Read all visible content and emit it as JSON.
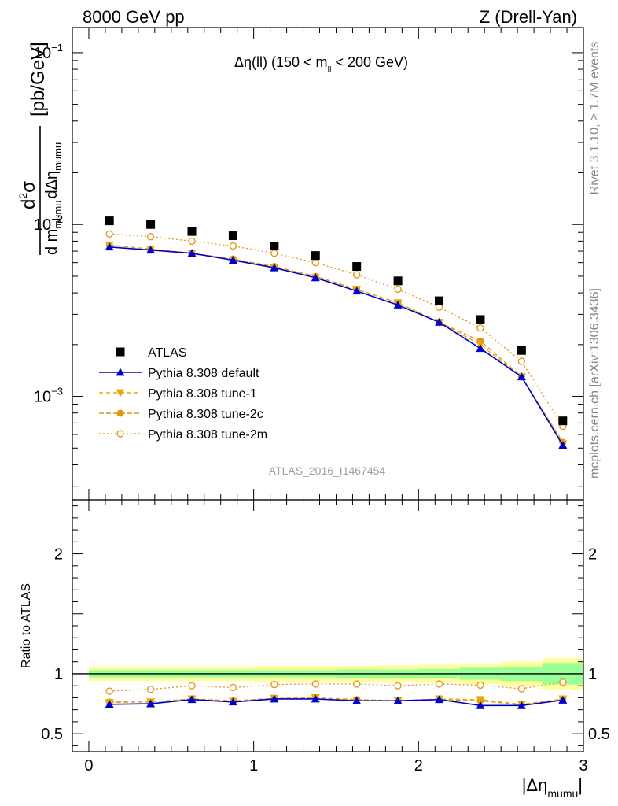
{
  "header": {
    "left": "8000 GeV pp",
    "right": "Z (Drell-Yan)"
  },
  "side_labels": {
    "rivet": "Rivet 3.1.10, ≥ 1.7M events",
    "mcplots": "mcplots.cern.ch [arXiv:1306.3436]"
  },
  "chart_data": {
    "type": "scatter",
    "title": "Δη(ll) (150 < m",
    "title_sub": "ll",
    "title_end": " < 200 GeV)",
    "watermark": "ATLAS_2016_I1467454",
    "ylabel_unit": "[pb/GeV]",
    "ylabel_parts": {
      "d2": "d",
      "sup2": "2",
      "sigma": "σ",
      "dm": "d m",
      "mumu1": "mumu",
      "deta": "dΔη",
      "mumu2": "mumu"
    },
    "xlabel": "|Δη",
    "xlabel_sub": "mumu",
    "xlabel_end": "|",
    "ratio_ylabel": "Ratio to ATLAS",
    "xlim": [
      -0.1,
      3.0
    ],
    "ylim": [
      0.00025,
      0.14
    ],
    "ratio_ylim": [
      0.35,
      2.45
    ],
    "yscale": "log",
    "x_ticks": [
      {
        "v": 0,
        "label": "0"
      },
      {
        "v": 1,
        "label": "1"
      },
      {
        "v": 2,
        "label": "2"
      },
      {
        "v": 3,
        "label": "3"
      }
    ],
    "y_ticks": [
      {
        "v": 0.1,
        "base": "10",
        "exp": "−1"
      },
      {
        "v": 0.01,
        "base": "10",
        "exp": "−2"
      },
      {
        "v": 0.001,
        "base": "10",
        "exp": "−3"
      }
    ],
    "ratio_ticks": [
      {
        "v": 0.5,
        "label": "0.5"
      },
      {
        "v": 1,
        "label": "1"
      },
      {
        "v": 2,
        "label": "2"
      }
    ],
    "x": [
      0.125,
      0.375,
      0.625,
      0.875,
      1.125,
      1.375,
      1.625,
      1.875,
      2.125,
      2.375,
      2.625,
      2.875
    ],
    "band_edges": [
      0.0,
      0.25,
      0.5,
      0.75,
      1.0,
      1.25,
      1.5,
      1.75,
      2.0,
      2.25,
      2.5,
      2.75,
      3.0
    ],
    "band_outer": [
      0.06,
      0.06,
      0.06,
      0.06,
      0.065,
      0.065,
      0.065,
      0.07,
      0.075,
      0.085,
      0.1,
      0.13
    ],
    "band_inner": [
      0.03,
      0.03,
      0.03,
      0.03,
      0.03,
      0.03,
      0.035,
      0.035,
      0.04,
      0.05,
      0.06,
      0.09
    ],
    "data": {
      "name": "ATLAS",
      "color": "#000000",
      "values": [
        0.0105,
        0.01,
        0.0091,
        0.0086,
        0.0075,
        0.0066,
        0.0057,
        0.0047,
        0.0036,
        0.0028,
        0.00185,
        0.00072
      ]
    },
    "series": [
      {
        "name": "Pythia 8.308 default",
        "color": "#0000cc",
        "marker": "triangle-up",
        "dash": "",
        "values": [
          0.0074,
          0.0071,
          0.0068,
          0.0062,
          0.0056,
          0.0049,
          0.0041,
          0.0034,
          0.0027,
          0.0019,
          0.0013,
          0.00052
        ]
      },
      {
        "name": "Pythia 8.308 tune-1",
        "color": "#e8a800",
        "marker": "triangle-down",
        "dash": "5,4",
        "values": [
          0.0076,
          0.0072,
          0.0068,
          0.0062,
          0.0056,
          0.0049,
          0.0042,
          0.0035,
          0.0027,
          0.002,
          0.0013,
          0.00053
        ]
      },
      {
        "name": "Pythia 8.308 tune-2c",
        "color": "#e0980a",
        "marker": "circle",
        "dash": "6,3",
        "values": [
          0.0076,
          0.0072,
          0.0068,
          0.0063,
          0.0057,
          0.005,
          0.0042,
          0.0035,
          0.0027,
          0.0021,
          0.0013,
          0.00054
        ]
      },
      {
        "name": "Pythia 8.308 tune-2m",
        "color": "#e09a20",
        "marker": "circle-open",
        "dash": "2,3",
        "values": [
          0.0088,
          0.0085,
          0.008,
          0.0075,
          0.0068,
          0.006,
          0.0051,
          0.0042,
          0.0033,
          0.0025,
          0.0016,
          0.00067
        ]
      }
    ],
    "ratios": [
      [
        0.745,
        0.75,
        0.785,
        0.765,
        0.79,
        0.79,
        0.775,
        0.775,
        0.785,
        0.735,
        0.735,
        0.78
      ],
      [
        0.76,
        0.765,
        0.79,
        0.77,
        0.795,
        0.8,
        0.78,
        0.775,
        0.79,
        0.785,
        0.745,
        0.79
      ],
      [
        0.765,
        0.765,
        0.79,
        0.775,
        0.795,
        0.8,
        0.785,
        0.775,
        0.785,
        0.775,
        0.74,
        0.785
      ],
      [
        0.855,
        0.87,
        0.9,
        0.885,
        0.91,
        0.915,
        0.915,
        0.9,
        0.915,
        0.905,
        0.875,
        0.93
      ]
    ],
    "legend_position": "lower-left"
  }
}
